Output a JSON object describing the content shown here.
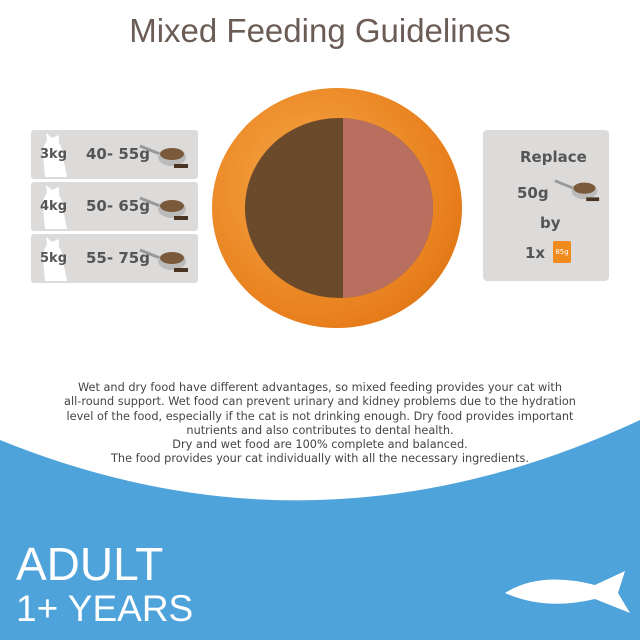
{
  "title": "Mixed Feeding Guidelines",
  "rows": [
    {
      "weight": "3kg",
      "amount": "40- 55g"
    },
    {
      "weight": "4kg",
      "amount": "50- 65g"
    },
    {
      "weight": "5kg",
      "amount": "55- 75g"
    }
  ],
  "replace": {
    "label": "Replace",
    "amount": "50g",
    "by": "by",
    "count": "1x",
    "pouch": "85g"
  },
  "description": [
    "Wet and dry food have different advantages, so mixed feeding provides your cat with",
    "all-round support. Wet food can prevent urinary and kidney problems due to the hydration",
    "level of the food, especially if the cat is not drinking enough. Dry food provides important",
    "nutrients and also contributes to dental health.",
    "Dry and wet food are 100% complete and balanced.",
    "The food provides your cat individually with all the necessary ingredients."
  ],
  "banner": {
    "line1": "ADULT",
    "line2": "1+ YEARS"
  },
  "colors": {
    "accent": "#4ea3db",
    "pouch": "#f08a1c",
    "card": "#dddbda"
  }
}
